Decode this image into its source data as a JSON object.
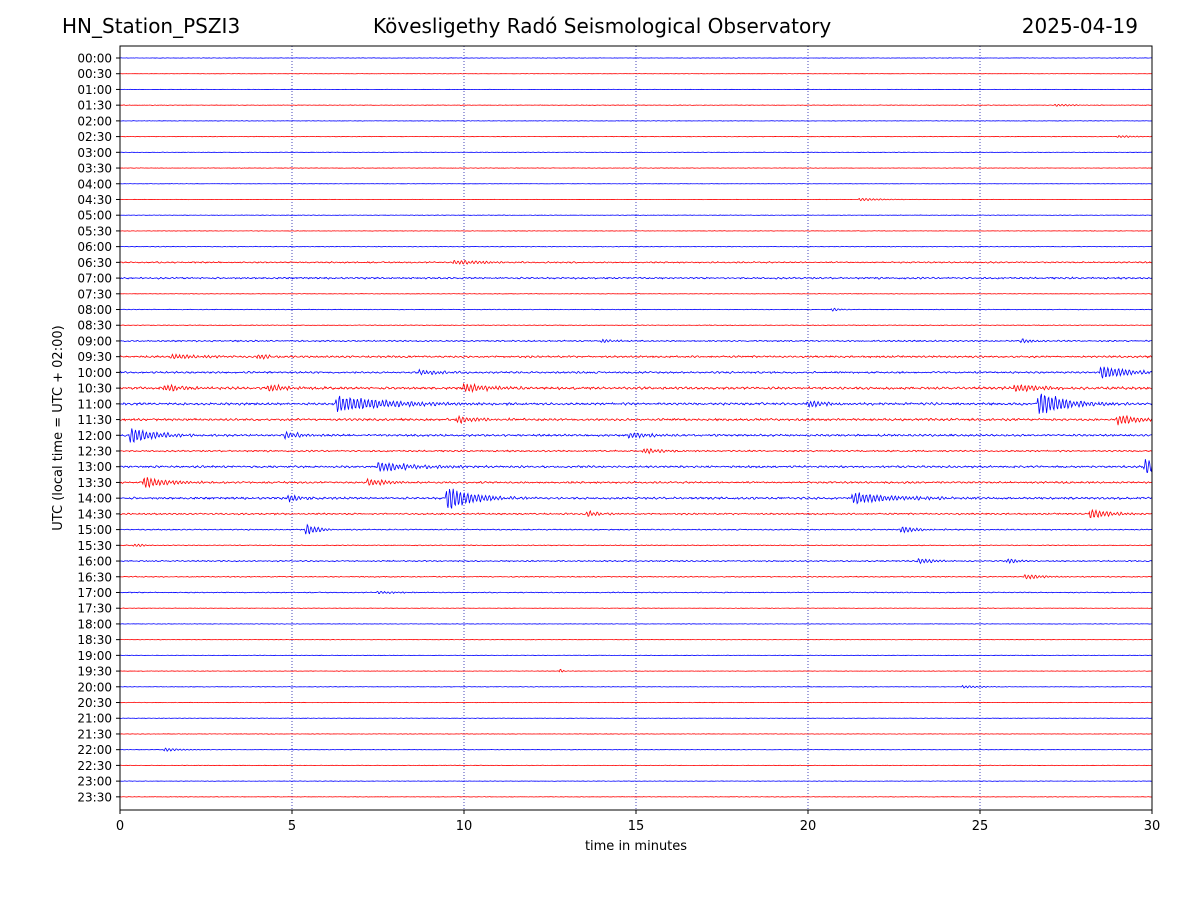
{
  "chart_data": {
    "type": "line",
    "title_left": "HN_Station_PSZI3",
    "title": "Kövesligethy Radó Seismological Observatory",
    "title_right": "2025-04-19",
    "xlabel": "time in minutes",
    "ylabel": "UTC (local time = UTC + 02:00)",
    "xlim": [
      0,
      30
    ],
    "xticks": [
      0,
      5,
      10,
      15,
      20,
      25,
      30
    ],
    "xtick_labels": [
      "0",
      "5",
      "10",
      "15",
      "20",
      "25",
      "30"
    ],
    "vertical_gridlines": [
      5,
      10,
      15,
      20,
      25
    ],
    "row_labels": [
      "00:00",
      "00:30",
      "01:00",
      "01:30",
      "02:00",
      "02:30",
      "03:00",
      "03:30",
      "04:00",
      "04:30",
      "05:00",
      "05:30",
      "06:00",
      "06:30",
      "07:00",
      "07:30",
      "08:00",
      "08:30",
      "09:00",
      "09:30",
      "10:00",
      "10:30",
      "11:00",
      "11:30",
      "12:00",
      "12:30",
      "13:00",
      "13:30",
      "14:00",
      "14:30",
      "15:00",
      "15:30",
      "16:00",
      "16:30",
      "17:00",
      "17:30",
      "18:00",
      "18:30",
      "19:00",
      "19:30",
      "20:00",
      "20:30",
      "21:00",
      "21:30",
      "22:00",
      "22:30",
      "23:00",
      "23:30"
    ],
    "trace_colors": [
      "#0000ff",
      "#ff0000"
    ],
    "noise_level": [
      0.3,
      0.2,
      0.2,
      0.3,
      0.3,
      0.3,
      0.3,
      0.3,
      0.2,
      0.2,
      0.3,
      0.3,
      0.4,
      0.9,
      1.1,
      0.3,
      0.4,
      0.4,
      0.9,
      1.2,
      1.2,
      1.6,
      1.5,
      1.4,
      1.3,
      1.0,
      1.3,
      1.2,
      1.4,
      1.0,
      0.7,
      0.5,
      0.8,
      0.6,
      0.6,
      0.3,
      0.3,
      0.3,
      0.3,
      0.3,
      0.3,
      0.3,
      0.3,
      0.3,
      0.3,
      0.3,
      0.3,
      0.3
    ],
    "events": [
      {
        "row": 3,
        "minute": 27.2,
        "amplitude": 1.5,
        "duration": 0.8
      },
      {
        "row": 5,
        "minute": 29.0,
        "amplitude": 1.3,
        "duration": 0.9
      },
      {
        "row": 9,
        "minute": 21.5,
        "amplitude": 1.5,
        "duration": 1.2
      },
      {
        "row": 13,
        "minute": 9.7,
        "amplitude": 2.5,
        "duration": 1.5
      },
      {
        "row": 16,
        "minute": 20.7,
        "amplitude": 2.0,
        "duration": 0.4
      },
      {
        "row": 18,
        "minute": 14.0,
        "amplitude": 2.5,
        "duration": 0.6
      },
      {
        "row": 18,
        "minute": 26.2,
        "amplitude": 3.0,
        "duration": 0.5
      },
      {
        "row": 19,
        "minute": 1.5,
        "amplitude": 2.5,
        "duration": 1.5
      },
      {
        "row": 19,
        "minute": 4.0,
        "amplitude": 3.0,
        "duration": 0.6
      },
      {
        "row": 20,
        "minute": 8.7,
        "amplitude": 3.0,
        "duration": 1.0
      },
      {
        "row": 20,
        "minute": 28.5,
        "amplitude": 7.0,
        "duration": 1.5
      },
      {
        "row": 21,
        "minute": 1.3,
        "amplitude": 4.0,
        "duration": 1.0
      },
      {
        "row": 21,
        "minute": 4.3,
        "amplitude": 4.0,
        "duration": 1.0
      },
      {
        "row": 21,
        "minute": 10.0,
        "amplitude": 5.0,
        "duration": 1.2
      },
      {
        "row": 21,
        "minute": 26.0,
        "amplitude": 4.0,
        "duration": 1.5
      },
      {
        "row": 22,
        "minute": 6.3,
        "amplitude": 9.0,
        "duration": 2.5
      },
      {
        "row": 22,
        "minute": 20.0,
        "amplitude": 4.0,
        "duration": 0.8
      },
      {
        "row": 22,
        "minute": 26.7,
        "amplitude": 14.0,
        "duration": 1.2
      },
      {
        "row": 23,
        "minute": 9.8,
        "amplitude": 4.0,
        "duration": 1.0
      },
      {
        "row": 23,
        "minute": 29.0,
        "amplitude": 6.0,
        "duration": 1.0
      },
      {
        "row": 24,
        "minute": 0.3,
        "amplitude": 9.0,
        "duration": 1.2
      },
      {
        "row": 24,
        "minute": 4.8,
        "amplitude": 4.0,
        "duration": 0.8
      },
      {
        "row": 24,
        "minute": 14.8,
        "amplitude": 3.0,
        "duration": 1.0
      },
      {
        "row": 25,
        "minute": 15.2,
        "amplitude": 3.0,
        "duration": 1.0
      },
      {
        "row": 26,
        "minute": 7.5,
        "amplitude": 5.0,
        "duration": 2.0
      },
      {
        "row": 26,
        "minute": 29.8,
        "amplitude": 9.0,
        "duration": 1.2
      },
      {
        "row": 27,
        "minute": 0.7,
        "amplitude": 6.0,
        "duration": 1.2
      },
      {
        "row": 27,
        "minute": 7.2,
        "amplitude": 4.0,
        "duration": 1.0
      },
      {
        "row": 28,
        "minute": 9.5,
        "amplitude": 14.0,
        "duration": 1.2
      },
      {
        "row": 28,
        "minute": 4.9,
        "amplitude": 4.0,
        "duration": 0.7
      },
      {
        "row": 28,
        "minute": 21.3,
        "amplitude": 6.0,
        "duration": 2.0
      },
      {
        "row": 29,
        "minute": 13.6,
        "amplitude": 4.0,
        "duration": 0.5
      },
      {
        "row": 29,
        "minute": 28.2,
        "amplitude": 6.0,
        "duration": 0.9
      },
      {
        "row": 30,
        "minute": 5.4,
        "amplitude": 6.0,
        "duration": 0.6
      },
      {
        "row": 30,
        "minute": 22.7,
        "amplitude": 4.0,
        "duration": 0.8
      },
      {
        "row": 31,
        "minute": 0.4,
        "amplitude": 2.0,
        "duration": 0.5
      },
      {
        "row": 32,
        "minute": 23.2,
        "amplitude": 3.0,
        "duration": 0.8
      },
      {
        "row": 32,
        "minute": 25.8,
        "amplitude": 3.0,
        "duration": 0.5
      },
      {
        "row": 33,
        "minute": 26.3,
        "amplitude": 3.0,
        "duration": 0.8
      },
      {
        "row": 34,
        "minute": 7.5,
        "amplitude": 1.5,
        "duration": 1.0
      },
      {
        "row": 39,
        "minute": 12.8,
        "amplitude": 3.0,
        "duration": 0.1
      },
      {
        "row": 40,
        "minute": 24.5,
        "amplitude": 1.5,
        "duration": 0.8
      },
      {
        "row": 44,
        "minute": 1.3,
        "amplitude": 2.0,
        "duration": 0.8
      }
    ]
  }
}
